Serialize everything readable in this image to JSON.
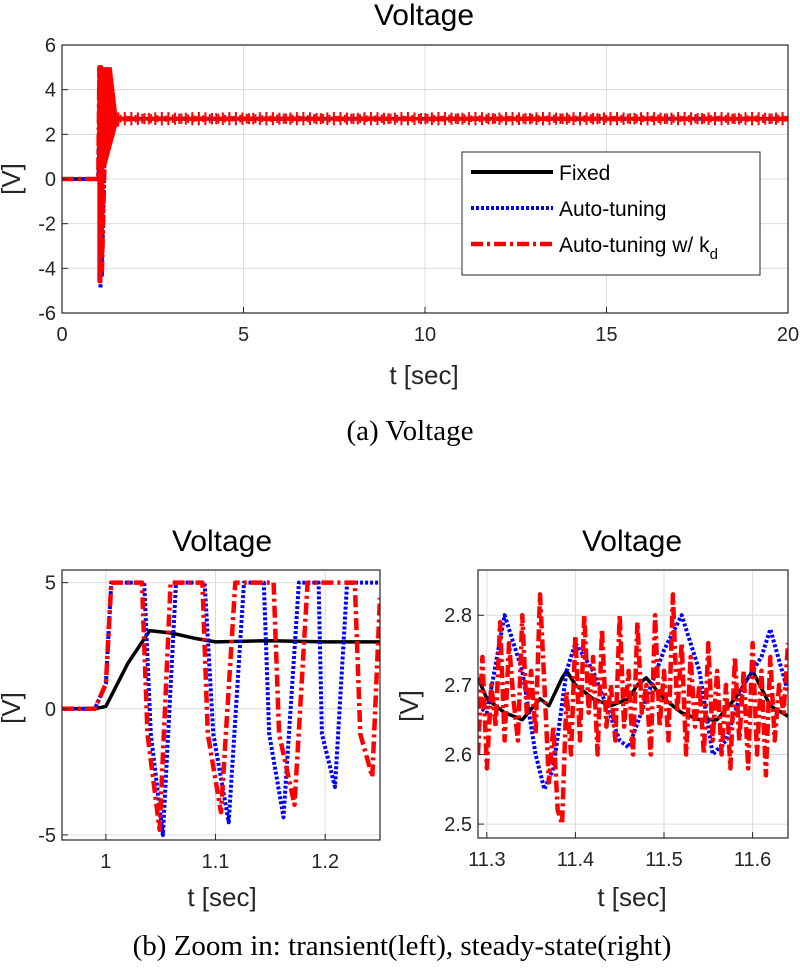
{
  "chart_data": [
    {
      "type": "line",
      "title": "Voltage",
      "xlabel": "t [sec]",
      "ylabel": "[V]",
      "xlim": [
        0,
        20
      ],
      "ylim": [
        -6,
        6
      ],
      "xticks": [
        0,
        5,
        10,
        15,
        20
      ],
      "yticks": [
        -6,
        -4,
        -2,
        0,
        2,
        4,
        6
      ],
      "xtick_labels": [
        "0",
        "5",
        "10",
        "15",
        "20"
      ],
      "ytick_labels": [
        "-6",
        "-4",
        "-2",
        "0",
        "2",
        "4",
        "6"
      ],
      "grid": true,
      "legend_position": "center-right",
      "caption": "(a) Voltage",
      "series": [
        {
          "name": "Fixed",
          "color": "#000000",
          "style": "solid",
          "x": [
            0,
            1.0,
            1.05,
            1.2,
            2.0,
            20
          ],
          "y": [
            0,
            0,
            3.2,
            2.7,
            2.7,
            2.7
          ]
        },
        {
          "name": "Auto-tuning",
          "color": "#0000ff",
          "style": "dotted",
          "x": [
            0,
            1.0,
            1.04,
            1.06,
            1.08,
            1.1,
            1.2,
            1.5,
            2.0,
            20
          ],
          "y": [
            0,
            0,
            5,
            -4.9,
            5,
            -4.3,
            3,
            2.7,
            2.7,
            2.7
          ]
        },
        {
          "name": "Auto-tuning w/ k",
          "color": "#ff0000",
          "style": "dashdot",
          "x": [
            0,
            1.0,
            1.03,
            1.05,
            1.08,
            1.1,
            1.2,
            1.5,
            2.0,
            20
          ],
          "y": [
            0,
            0,
            5,
            -4.7,
            5,
            -4.1,
            3,
            2.7,
            2.7,
            2.7
          ]
        }
      ]
    },
    {
      "type": "line",
      "title": "Voltage",
      "xlabel": "t [sec]",
      "ylabel": "[V]",
      "xlim": [
        0.96,
        1.25
      ],
      "ylim": [
        -5.2,
        5.5
      ],
      "xticks": [
        1,
        1.1,
        1.2
      ],
      "yticks": [
        -5,
        0,
        5
      ],
      "xtick_labels": [
        "1",
        "1.1",
        "1.2"
      ],
      "ytick_labels": [
        "-5",
        "0",
        "5"
      ],
      "grid": true,
      "series": [
        {
          "name": "Fixed",
          "color": "#000000",
          "style": "solid",
          "x": [
            0.96,
            0.99,
            1.0,
            1.02,
            1.04,
            1.06,
            1.08,
            1.1,
            1.15,
            1.2,
            1.25
          ],
          "y": [
            0,
            0,
            0.1,
            1.8,
            3.1,
            3.0,
            2.8,
            2.65,
            2.7,
            2.65,
            2.65
          ]
        },
        {
          "name": "Auto-tuning",
          "color": "#0000ff",
          "style": "dotted",
          "x": [
            0.96,
            0.99,
            1.0,
            1.005,
            1.035,
            1.041,
            1.052,
            1.064,
            1.09,
            1.098,
            1.112,
            1.126,
            1.144,
            1.149,
            1.162,
            1.176,
            1.194,
            1.197,
            1.209,
            1.22,
            1.25
          ],
          "y": [
            0,
            0,
            1,
            5,
            5,
            -1,
            -5,
            5,
            5,
            -1,
            -4.5,
            5,
            5,
            -1,
            -4.3,
            5,
            5,
            -1,
            -3.1,
            5,
            5
          ]
        },
        {
          "name": "Auto-tuning w/ k",
          "color": "#ff0000",
          "style": "dashdot",
          "x": [
            0.96,
            0.99,
            1.0,
            1.005,
            1.033,
            1.038,
            1.049,
            1.059,
            1.088,
            1.093,
            1.105,
            1.118,
            1.153,
            1.158,
            1.172,
            1.184,
            1.227,
            1.232,
            1.243,
            1.25
          ],
          "y": [
            0,
            0,
            1,
            5,
            5,
            -1,
            -4.8,
            5,
            5,
            -1,
            -4.1,
            5,
            5,
            -1,
            -3.8,
            5,
            5,
            -1,
            -2.7,
            4.4
          ]
        }
      ]
    },
    {
      "type": "line",
      "title": "Voltage",
      "xlabel": "t [sec]",
      "ylabel": "[V]",
      "xlim": [
        11.29,
        11.64
      ],
      "ylim": [
        2.48,
        2.865
      ],
      "xticks": [
        11.3,
        11.4,
        11.5,
        11.6
      ],
      "yticks": [
        2.5,
        2.6,
        2.7,
        2.8
      ],
      "xtick_labels": [
        "11.3",
        "11.4",
        "11.5",
        "11.6"
      ],
      "ytick_labels": [
        "2.5",
        "2.6",
        "2.7",
        "2.8"
      ],
      "grid": true,
      "caption": "(b) Zoom in: transient(left), steady-state(right)",
      "series": [
        {
          "name": "Fixed",
          "color": "#000000",
          "style": "solid",
          "x": [
            11.29,
            11.3,
            11.32,
            11.34,
            11.36,
            11.37,
            11.385,
            11.39,
            11.4,
            11.42,
            11.44,
            11.46,
            11.47,
            11.48,
            11.5,
            11.52,
            11.54,
            11.56,
            11.58,
            11.6,
            11.62,
            11.64
          ],
          "y": [
            2.71,
            2.68,
            2.66,
            2.65,
            2.68,
            2.67,
            2.71,
            2.72,
            2.7,
            2.68,
            2.67,
            2.68,
            2.7,
            2.71,
            2.68,
            2.66,
            2.65,
            2.65,
            2.68,
            2.72,
            2.67,
            2.655
          ]
        },
        {
          "name": "Auto-tuning",
          "color": "#0000ff",
          "style": "dotted",
          "x": [
            11.29,
            11.3,
            11.32,
            11.34,
            11.355,
            11.365,
            11.375,
            11.39,
            11.4,
            11.42,
            11.45,
            11.46,
            11.48,
            11.5,
            11.52,
            11.54,
            11.555,
            11.57,
            11.59,
            11.61,
            11.62,
            11.64
          ],
          "y": [
            2.67,
            2.66,
            2.8,
            2.72,
            2.6,
            2.55,
            2.58,
            2.72,
            2.76,
            2.72,
            2.62,
            2.61,
            2.68,
            2.75,
            2.8,
            2.72,
            2.6,
            2.62,
            2.7,
            2.74,
            2.78,
            2.69
          ]
        },
        {
          "name": "Auto-tuning w/ k",
          "color": "#ff0000",
          "style": "dashdot",
          "x": [
            11.29,
            11.295,
            11.3,
            11.305,
            11.31,
            11.315,
            11.32,
            11.325,
            11.33,
            11.335,
            11.34,
            11.345,
            11.35,
            11.355,
            11.36,
            11.365,
            11.37,
            11.375,
            11.38,
            11.385,
            11.39,
            11.395,
            11.4,
            11.405,
            11.41,
            11.415,
            11.42,
            11.425,
            11.43,
            11.435,
            11.44,
            11.445,
            11.45,
            11.455,
            11.46,
            11.465,
            11.47,
            11.475,
            11.48,
            11.485,
            11.49,
            11.495,
            11.5,
            11.505,
            11.51,
            11.515,
            11.52,
            11.525,
            11.53,
            11.535,
            11.54,
            11.545,
            11.55,
            11.555,
            11.56,
            11.565,
            11.57,
            11.575,
            11.58,
            11.585,
            11.59,
            11.595,
            11.6,
            11.605,
            11.61,
            11.615,
            11.62,
            11.625,
            11.63,
            11.635,
            11.64
          ],
          "y": [
            2.6,
            2.74,
            2.58,
            2.7,
            2.64,
            2.79,
            2.62,
            2.76,
            2.68,
            2.62,
            2.8,
            2.66,
            2.72,
            2.63,
            2.83,
            2.7,
            2.56,
            2.64,
            2.52,
            2.5,
            2.69,
            2.6,
            2.77,
            2.62,
            2.8,
            2.66,
            2.74,
            2.6,
            2.78,
            2.64,
            2.7,
            2.62,
            2.8,
            2.64,
            2.72,
            2.6,
            2.79,
            2.66,
            2.7,
            2.6,
            2.8,
            2.64,
            2.72,
            2.62,
            2.83,
            2.66,
            2.76,
            2.6,
            2.74,
            2.64,
            2.7,
            2.6,
            2.76,
            2.62,
            2.72,
            2.6,
            2.7,
            2.58,
            2.74,
            2.62,
            2.72,
            2.58,
            2.76,
            2.6,
            2.72,
            2.57,
            2.74,
            2.62,
            2.7,
            2.66,
            2.76
          ]
        }
      ]
    }
  ],
  "legend": {
    "items": [
      {
        "label": "Fixed",
        "color": "#000000",
        "style": "solid"
      },
      {
        "label": "Auto-tuning",
        "color": "#0000ff",
        "style": "dotted"
      },
      {
        "label": "Auto-tuning w/ k",
        "subscript": "d",
        "color": "#ff0000",
        "style": "dashdot"
      }
    ]
  }
}
